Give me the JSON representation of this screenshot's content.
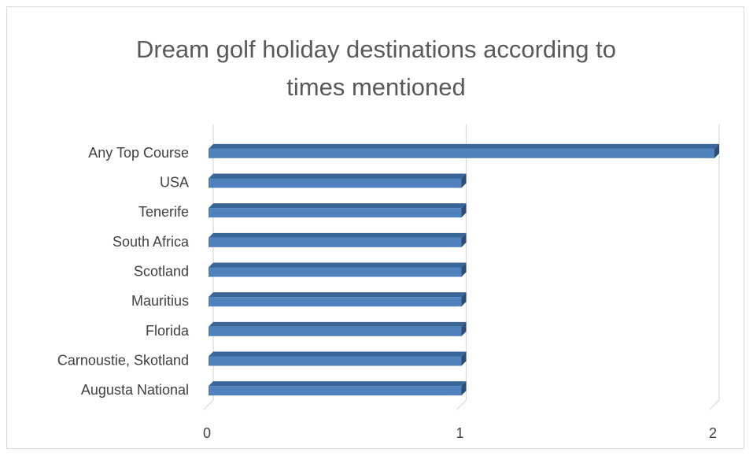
{
  "chart_data": {
    "type": "bar",
    "orientation": "horizontal",
    "style": "3d-clustered-bar",
    "title": "Dream golf holiday destinations according to times mentioned",
    "title_lines": [
      "Dream golf holiday destinations according to",
      "times mentioned"
    ],
    "categories": [
      "Any Top Course",
      "USA",
      "Tenerife",
      "South Africa",
      "Scotland",
      "Mauritius",
      "Florida",
      "Carnoustie, Skotland",
      "Augusta National"
    ],
    "values": [
      2,
      1,
      1,
      1,
      1,
      1,
      1,
      1,
      1
    ],
    "xlim": [
      0,
      2
    ],
    "x_ticks": [
      0,
      1,
      2
    ],
    "xlabel": "",
    "ylabel": "",
    "grid": "vertical",
    "legend": "none",
    "colors": {
      "bar_face": "#4f81bd",
      "bar_top": "#3a6599",
      "bar_end": "#2c4d76",
      "grid": "#d9d9d9",
      "text": "#595959"
    }
  }
}
